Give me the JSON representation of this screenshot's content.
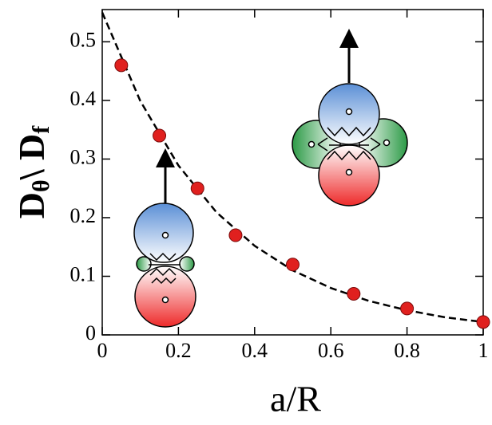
{
  "chart_data": {
    "type": "scatter",
    "xlabel": "a/R",
    "ylabel_parts": [
      "D",
      "θ",
      "\\ D",
      "f"
    ],
    "series": [
      {
        "color": "#e0201e",
        "x": [
          0.05,
          0.15,
          0.25,
          0.35,
          0.5,
          0.66,
          0.8,
          1.0
        ],
        "values": [
          0.46,
          0.34,
          0.25,
          0.17,
          0.12,
          0.07,
          0.045,
          0.022
        ]
      },
      {
        "color": "#000000",
        "style": "dashed",
        "x": [
          0,
          0.1,
          0.2,
          0.3,
          0.4,
          0.5,
          0.6,
          0.7,
          0.8,
          0.9,
          1.0
        ],
        "values": [
          0.55,
          0.399,
          0.289,
          0.209,
          0.152,
          0.11,
          0.08,
          0.058,
          0.042,
          0.03,
          0.022
        ]
      }
    ],
    "xlim": [
      0,
      1
    ],
    "ylim": [
      0,
      0.555
    ],
    "xticks": [
      0,
      0.2,
      0.4,
      0.6,
      0.8,
      1
    ],
    "yticks": [
      0,
      0.1,
      0.2,
      0.3,
      0.4,
      0.5
    ]
  }
}
